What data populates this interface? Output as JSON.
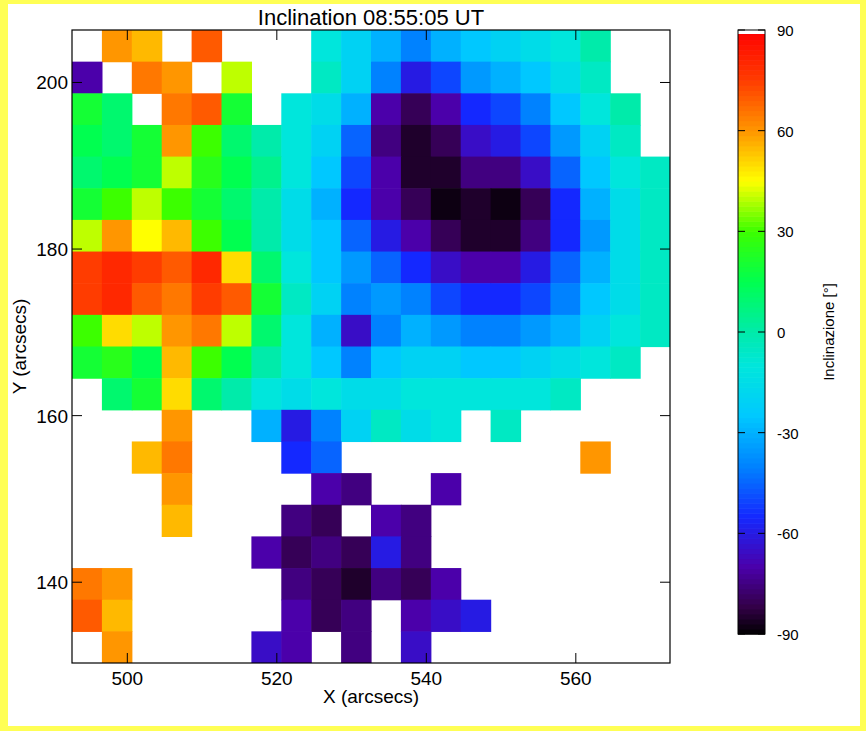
{
  "chart_data": {
    "type": "heatmap",
    "title": "Inclination 08:55:05 UT",
    "x_label": "X (arcsecs)",
    "y_label": "Y (arcsecs)",
    "xlim": [
      492.6,
      572.6
    ],
    "ylim": [
      130.3,
      206.3
    ],
    "xticks": [
      500,
      520,
      540,
      560
    ],
    "yticks": [
      140,
      160,
      180,
      200
    ],
    "x": [
      494.6,
      498.6,
      502.6,
      506.6,
      510.6,
      514.6,
      518.6,
      522.6,
      526.6,
      530.6,
      534.6,
      538.6,
      542.6,
      546.6,
      550.6,
      554.6,
      558.6,
      562.6,
      566.6,
      570.6
    ],
    "y": [
      204.4,
      200.6,
      196.8,
      193,
      189.2,
      185.4,
      181.6,
      177.8,
      174,
      170.2,
      166.4,
      162.6,
      158.8,
      155,
      151.2,
      147.4,
      143.6,
      139.8,
      136,
      132.2
    ],
    "values": [
      [
        null,
        60,
        55,
        null,
        70,
        null,
        null,
        null,
        -10,
        -20,
        -30,
        -40,
        -30,
        -25,
        -20,
        -15,
        -10,
        0,
        null,
        null
      ],
      [
        -70,
        null,
        65,
        60,
        null,
        40,
        null,
        null,
        -5,
        -20,
        -40,
        -60,
        -50,
        -35,
        -30,
        -25,
        -15,
        -5,
        null,
        null
      ],
      [
        20,
        10,
        null,
        65,
        70,
        20,
        null,
        -10,
        -15,
        -30,
        -70,
        -80,
        -70,
        -55,
        -50,
        -40,
        -25,
        -10,
        0,
        null
      ],
      [
        15,
        10,
        20,
        60,
        30,
        10,
        0,
        -10,
        -20,
        -45,
        -75,
        -85,
        -80,
        -65,
        -60,
        -50,
        -35,
        -20,
        -5,
        null
      ],
      [
        10,
        15,
        20,
        40,
        25,
        15,
        5,
        -10,
        -25,
        -50,
        -70,
        -85,
        -85,
        -75,
        -75,
        -65,
        -45,
        -25,
        -10,
        -5
      ],
      [
        20,
        30,
        40,
        30,
        20,
        10,
        0,
        -15,
        -30,
        -55,
        -70,
        -80,
        -88,
        -85,
        -88,
        -80,
        -55,
        -30,
        -15,
        -5
      ],
      [
        40,
        60,
        45,
        55,
        30,
        15,
        0,
        -15,
        -25,
        -45,
        -60,
        -70,
        -80,
        -85,
        -85,
        -75,
        -55,
        -35,
        -15,
        -5
      ],
      [
        75,
        80,
        75,
        70,
        80,
        50,
        10,
        -10,
        -25,
        -35,
        -45,
        -55,
        -65,
        -70,
        -70,
        -60,
        -45,
        -30,
        -15,
        -5
      ],
      [
        75,
        80,
        70,
        65,
        75,
        70,
        20,
        -5,
        -20,
        -40,
        -35,
        -40,
        -50,
        -55,
        -55,
        -50,
        -40,
        -25,
        -15,
        -5
      ],
      [
        30,
        50,
        40,
        60,
        65,
        40,
        10,
        -10,
        -30,
        -65,
        -40,
        -30,
        -35,
        -40,
        -40,
        -35,
        -30,
        -20,
        -10,
        -5
      ],
      [
        20,
        25,
        15,
        55,
        30,
        15,
        0,
        -10,
        -25,
        -40,
        -25,
        -20,
        -20,
        -25,
        -25,
        -20,
        -15,
        -10,
        -5,
        null
      ],
      [
        null,
        10,
        20,
        50,
        10,
        0,
        -10,
        -15,
        -10,
        -15,
        -15,
        -10,
        -10,
        -10,
        -10,
        -10,
        -5,
        null,
        null,
        null
      ],
      [
        null,
        null,
        null,
        60,
        null,
        null,
        -30,
        -60,
        -40,
        -20,
        -5,
        -15,
        -10,
        null,
        -5,
        null,
        null,
        null,
        null,
        null
      ],
      [
        null,
        null,
        55,
        65,
        null,
        null,
        null,
        -55,
        -45,
        null,
        null,
        null,
        null,
        null,
        null,
        null,
        null,
        60,
        null,
        null
      ],
      [
        null,
        null,
        null,
        60,
        null,
        null,
        null,
        null,
        -70,
        -75,
        null,
        null,
        -70,
        null,
        null,
        null,
        null,
        null,
        null,
        null
      ],
      [
        null,
        null,
        null,
        55,
        null,
        null,
        null,
        -75,
        -80,
        null,
        -70,
        -75,
        null,
        null,
        null,
        null,
        null,
        null,
        null,
        null
      ],
      [
        null,
        null,
        null,
        null,
        null,
        null,
        -70,
        -80,
        -75,
        -80,
        -60,
        -75,
        null,
        null,
        null,
        null,
        null,
        null,
        null,
        null
      ],
      [
        65,
        60,
        null,
        null,
        null,
        null,
        null,
        -75,
        -80,
        -85,
        -75,
        -80,
        -70,
        null,
        null,
        null,
        null,
        null,
        null,
        null
      ],
      [
        70,
        55,
        null,
        null,
        null,
        null,
        null,
        -70,
        -80,
        -75,
        null,
        -70,
        -65,
        -60,
        null,
        null,
        null,
        null,
        null,
        null
      ],
      [
        null,
        60,
        null,
        null,
        null,
        null,
        -65,
        -70,
        null,
        -75,
        null,
        -65,
        null,
        null,
        null,
        null,
        null,
        null,
        null,
        null
      ]
    ],
    "colorbar": {
      "label": "Inclinazione [°]",
      "range": [
        -90,
        90
      ],
      "ticks": [
        -90,
        -60,
        -30,
        0,
        30,
        60,
        90
      ]
    }
  }
}
